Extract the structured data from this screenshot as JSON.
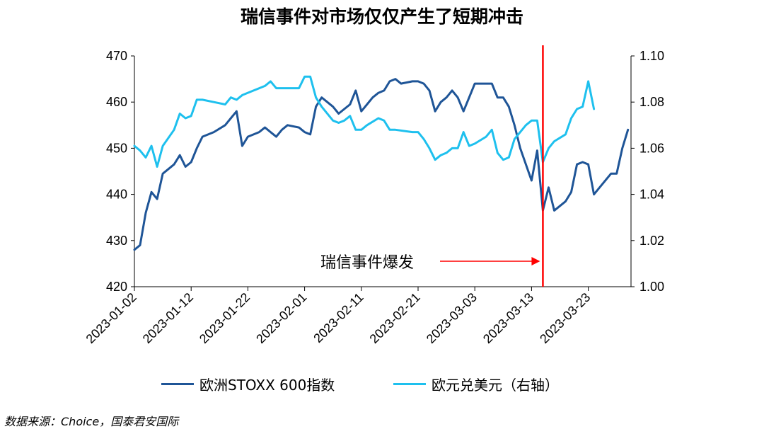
{
  "title": "瑞信事件对市场仅仅产生了短期冲击",
  "source": "数据来源：Choice，国泰君安国际",
  "annotation": "瑞信事件爆发",
  "legend": [
    {
      "name": "欧洲STOXX 600指数",
      "color": "#1F5597"
    },
    {
      "name": "欧元兑美元（右轴）",
      "color": "#1EC0EE"
    }
  ],
  "chart_data": {
    "type": "line",
    "title": "瑞信事件对市场仅仅产生了短期冲击",
    "x_start": "2023-01-02",
    "x_ticks": [
      "2023-01-02",
      "2023-01-12",
      "2023-01-22",
      "2023-02-01",
      "2023-02-11",
      "2023-02-21",
      "2023-03-03",
      "2023-03-13",
      "2023-03-23"
    ],
    "y_left": {
      "min": 420,
      "max": 470,
      "ticks": [
        "420",
        "430",
        "440",
        "450",
        "460",
        "470"
      ]
    },
    "y_right": {
      "min": 1.0,
      "max": 1.1,
      "ticks": [
        "1.00",
        "1.02",
        "1.04",
        "1.06",
        "1.08",
        "1.10"
      ]
    },
    "event_date": "2023-03-15",
    "series": [
      {
        "name": "欧洲STOXX 600指数",
        "axis": "left",
        "color": "#1F5597",
        "points": [
          [
            "2023-01-02",
            428
          ],
          [
            "2023-01-03",
            429
          ],
          [
            "2023-01-04",
            436
          ],
          [
            "2023-01-05",
            440.5
          ],
          [
            "2023-01-06",
            439
          ],
          [
            "2023-01-07",
            444.5
          ],
          [
            "2023-01-09",
            446.5
          ],
          [
            "2023-01-10",
            448.5
          ],
          [
            "2023-01-11",
            446
          ],
          [
            "2023-01-12",
            447
          ],
          [
            "2023-01-13",
            450
          ],
          [
            "2023-01-14",
            452.5
          ],
          [
            "2023-01-16",
            453.5
          ],
          [
            "2023-01-18",
            455
          ],
          [
            "2023-01-19",
            456.5
          ],
          [
            "2023-01-20",
            458
          ],
          [
            "2023-01-21",
            450.5
          ],
          [
            "2023-01-22",
            452.5
          ],
          [
            "2023-01-24",
            453.5
          ],
          [
            "2023-01-25",
            454.5
          ],
          [
            "2023-01-27",
            452.5
          ],
          [
            "2023-01-28",
            454
          ],
          [
            "2023-01-29",
            455
          ],
          [
            "2023-01-31",
            454.5
          ],
          [
            "2023-02-01",
            453.5
          ],
          [
            "2023-02-02",
            453
          ],
          [
            "2023-02-03",
            459
          ],
          [
            "2023-02-04",
            461
          ],
          [
            "2023-02-06",
            459
          ],
          [
            "2023-02-07",
            457.5
          ],
          [
            "2023-02-08",
            458.5
          ],
          [
            "2023-02-09",
            459.5
          ],
          [
            "2023-02-10",
            462.5
          ],
          [
            "2023-02-11",
            458
          ],
          [
            "2023-02-12",
            459.5
          ],
          [
            "2023-02-13",
            461
          ],
          [
            "2023-02-14",
            462
          ],
          [
            "2023-02-15",
            462.5
          ],
          [
            "2023-02-16",
            464.5
          ],
          [
            "2023-02-17",
            465
          ],
          [
            "2023-02-18",
            464
          ],
          [
            "2023-02-20",
            464.5
          ],
          [
            "2023-02-21",
            464.5
          ],
          [
            "2023-02-22",
            464
          ],
          [
            "2023-02-23",
            462.5
          ],
          [
            "2023-02-24",
            458
          ],
          [
            "2023-02-25",
            460
          ],
          [
            "2023-02-26",
            461
          ],
          [
            "2023-02-27",
            462.5
          ],
          [
            "2023-02-28",
            461
          ],
          [
            "2023-03-01",
            458
          ],
          [
            "2023-03-02",
            461
          ],
          [
            "2023-03-03",
            464
          ],
          [
            "2023-03-05",
            464
          ],
          [
            "2023-03-06",
            464
          ],
          [
            "2023-03-07",
            461
          ],
          [
            "2023-03-08",
            461
          ],
          [
            "2023-03-09",
            459
          ],
          [
            "2023-03-10",
            455
          ],
          [
            "2023-03-11",
            450
          ],
          [
            "2023-03-13",
            443
          ],
          [
            "2023-03-14",
            449.5
          ],
          [
            "2023-03-15",
            436.5
          ],
          [
            "2023-03-16",
            441.5
          ],
          [
            "2023-03-17",
            436.5
          ],
          [
            "2023-03-19",
            438.5
          ],
          [
            "2023-03-20",
            440.5
          ],
          [
            "2023-03-21",
            446.5
          ],
          [
            "2023-03-22",
            447
          ],
          [
            "2023-03-23",
            446.5
          ],
          [
            "2023-03-24",
            440
          ],
          [
            "2023-03-25",
            441.5
          ],
          [
            "2023-03-27",
            444.5
          ],
          [
            "2023-03-28",
            444.5
          ],
          [
            "2023-03-29",
            450
          ],
          [
            "2023-03-30",
            454
          ]
        ]
      },
      {
        "name": "欧元兑美元（右轴）",
        "axis": "right",
        "color": "#1EC0EE",
        "points": [
          [
            "2023-01-02",
            1.061
          ],
          [
            "2023-01-03",
            1.059
          ],
          [
            "2023-01-04",
            1.056
          ],
          [
            "2023-01-05",
            1.061
          ],
          [
            "2023-01-06",
            1.052
          ],
          [
            "2023-01-07",
            1.061
          ],
          [
            "2023-01-09",
            1.068
          ],
          [
            "2023-01-10",
            1.075
          ],
          [
            "2023-01-11",
            1.073
          ],
          [
            "2023-01-12",
            1.074
          ],
          [
            "2023-01-13",
            1.081
          ],
          [
            "2023-01-14",
            1.081
          ],
          [
            "2023-01-16",
            1.08
          ],
          [
            "2023-01-18",
            1.079
          ],
          [
            "2023-01-19",
            1.082
          ],
          [
            "2023-01-20",
            1.081
          ],
          [
            "2023-01-21",
            1.083
          ],
          [
            "2023-01-23",
            1.085
          ],
          [
            "2023-01-25",
            1.087
          ],
          [
            "2023-01-26",
            1.089
          ],
          [
            "2023-01-27",
            1.086
          ],
          [
            "2023-01-28",
            1.086
          ],
          [
            "2023-01-30",
            1.086
          ],
          [
            "2023-01-31",
            1.086
          ],
          [
            "2023-02-01",
            1.091
          ],
          [
            "2023-02-02",
            1.091
          ],
          [
            "2023-02-03",
            1.082
          ],
          [
            "2023-02-04",
            1.078
          ],
          [
            "2023-02-06",
            1.072
          ],
          [
            "2023-02-07",
            1.071
          ],
          [
            "2023-02-08",
            1.072
          ],
          [
            "2023-02-09",
            1.074
          ],
          [
            "2023-02-10",
            1.068
          ],
          [
            "2023-02-11",
            1.068
          ],
          [
            "2023-02-12",
            1.07
          ],
          [
            "2023-02-14",
            1.073
          ],
          [
            "2023-02-15",
            1.072
          ],
          [
            "2023-02-16",
            1.068
          ],
          [
            "2023-02-17",
            1.068
          ],
          [
            "2023-02-20",
            1.067
          ],
          [
            "2023-02-21",
            1.067
          ],
          [
            "2023-02-22",
            1.064
          ],
          [
            "2023-02-23",
            1.06
          ],
          [
            "2023-02-24",
            1.055
          ],
          [
            "2023-02-25",
            1.057
          ],
          [
            "2023-02-26",
            1.058
          ],
          [
            "2023-02-27",
            1.06
          ],
          [
            "2023-02-28",
            1.06
          ],
          [
            "2023-03-01",
            1.067
          ],
          [
            "2023-03-02",
            1.061
          ],
          [
            "2023-03-03",
            1.062
          ],
          [
            "2023-03-05",
            1.065
          ],
          [
            "2023-03-06",
            1.068
          ],
          [
            "2023-03-07",
            1.058
          ],
          [
            "2023-03-08",
            1.055
          ],
          [
            "2023-03-09",
            1.056
          ],
          [
            "2023-03-10",
            1.064
          ],
          [
            "2023-03-12",
            1.07
          ],
          [
            "2023-03-13",
            1.072
          ],
          [
            "2023-03-14",
            1.072
          ],
          [
            "2023-03-15",
            1.054
          ],
          [
            "2023-03-16",
            1.06
          ],
          [
            "2023-03-17",
            1.063
          ],
          [
            "2023-03-19",
            1.066
          ],
          [
            "2023-03-20",
            1.073
          ],
          [
            "2023-03-21",
            1.077
          ],
          [
            "2023-03-22",
            1.078
          ],
          [
            "2023-03-23",
            1.089
          ],
          [
            "2023-03-24",
            1.077
          ]
        ]
      }
    ]
  }
}
